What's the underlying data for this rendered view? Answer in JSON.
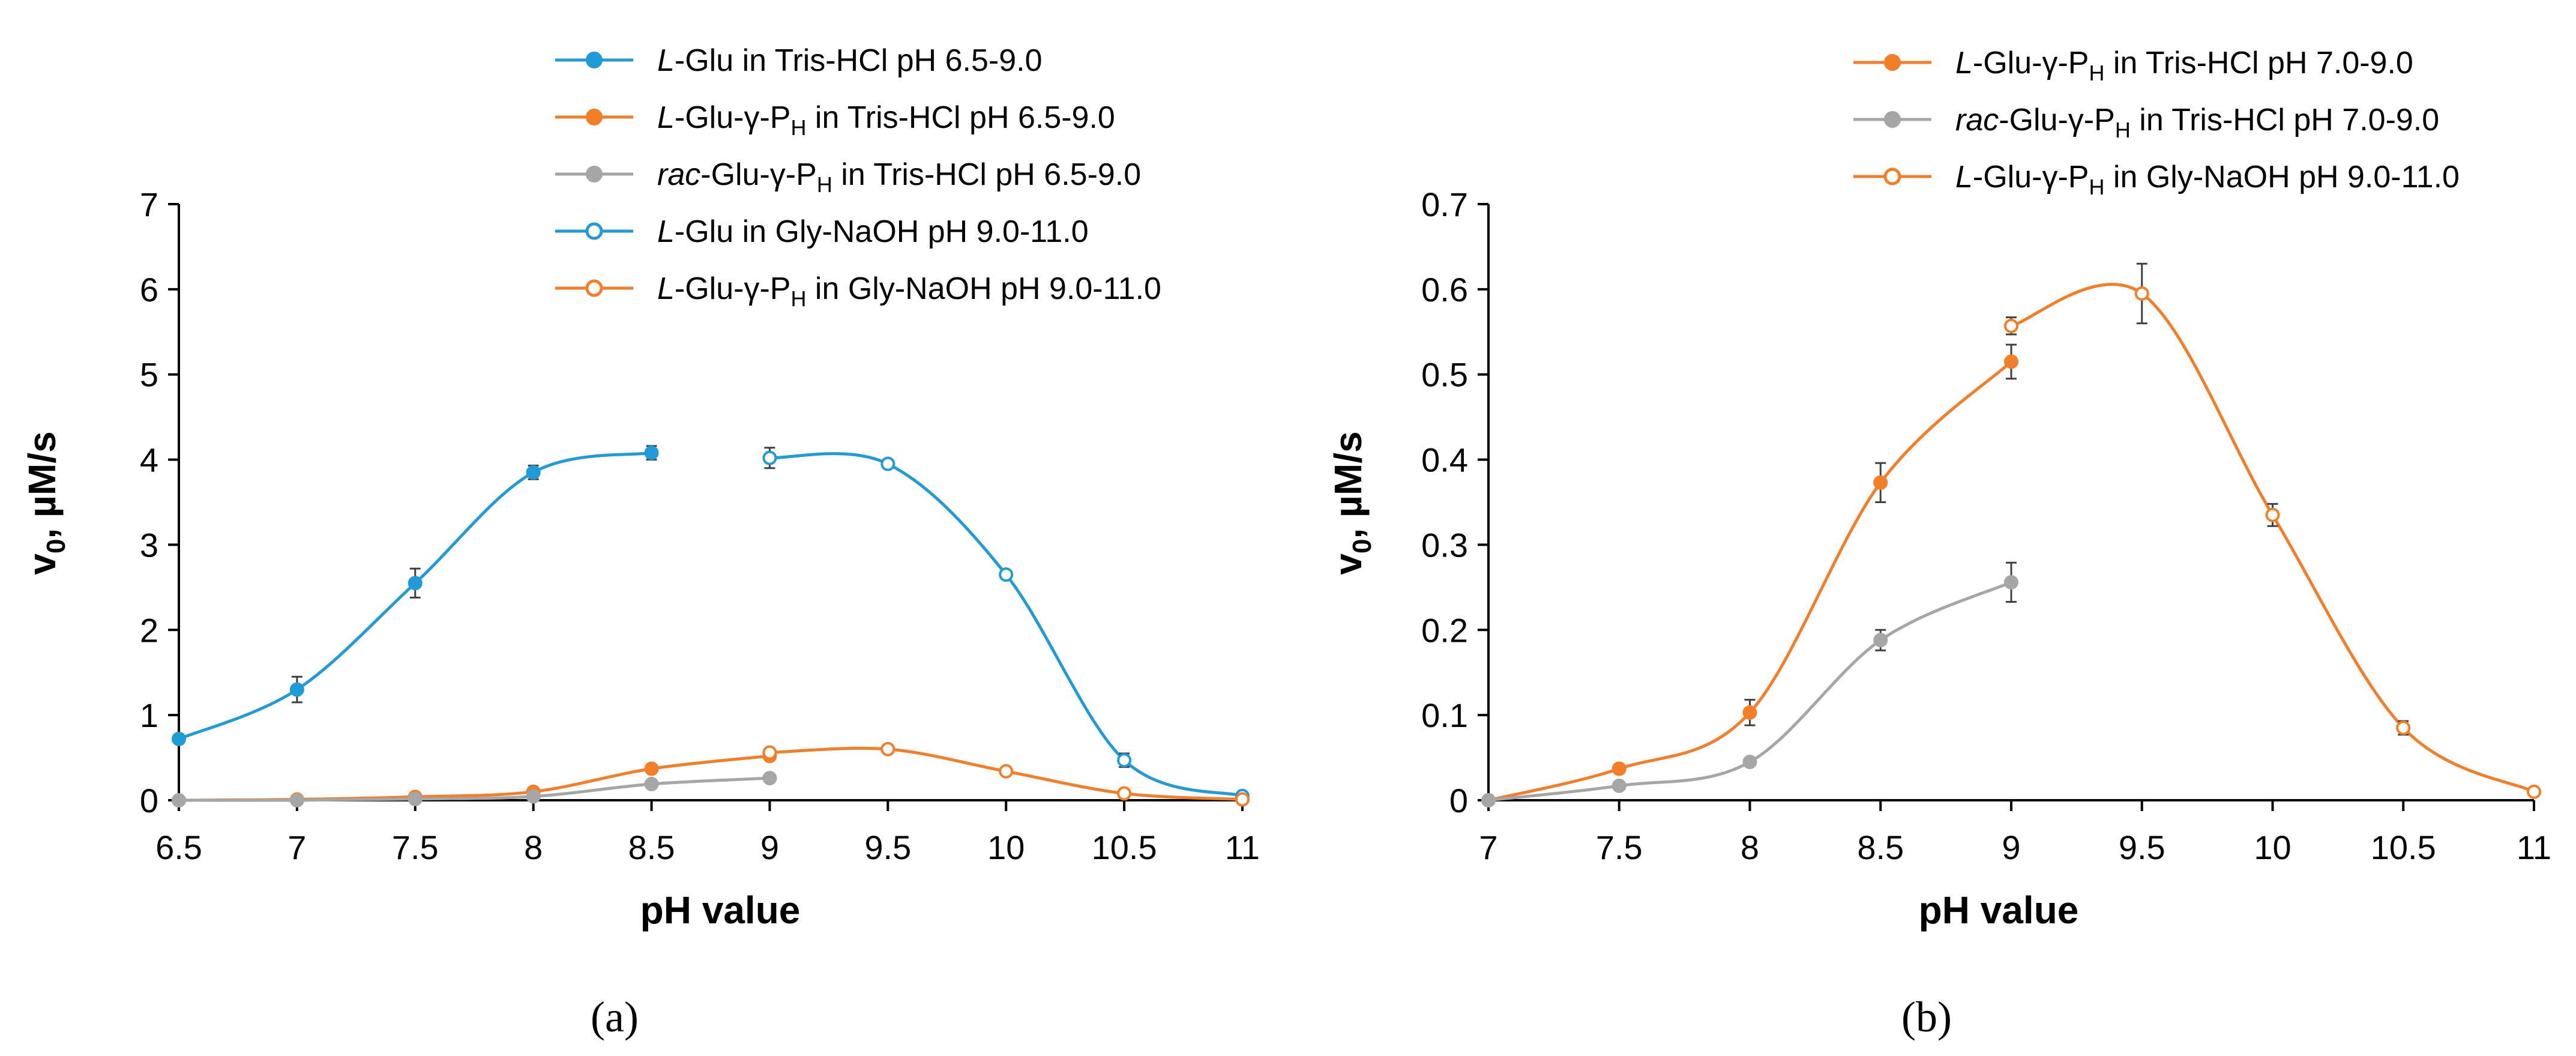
{
  "colors": {
    "blue": "#1f9bd7",
    "orange": "#f47e28",
    "gray": "#a6a6a6",
    "axis": "#000000",
    "errorbar": "#404040"
  },
  "chart_data": [
    {
      "type": "line",
      "panel_label": "(a)",
      "xlabel": "pH value",
      "ylabel": "v0, µM/s",
      "ylabel_main": "v",
      "ylabel_sub": "0",
      "ylabel_rest": ", µM/s",
      "xlim": [
        6.5,
        11
      ],
      "ylim": [
        0,
        7
      ],
      "xticks": [
        6.5,
        7,
        7.5,
        8,
        8.5,
        9,
        9.5,
        10,
        10.5,
        11
      ],
      "xtick_labels": [
        "6.5",
        "7",
        "7.5",
        "8",
        "8.5",
        "9",
        "9.5",
        "10",
        "10.5",
        "11"
      ],
      "yticks": [
        0,
        1,
        2,
        3,
        4,
        5,
        6,
        7
      ],
      "ytick_labels": [
        "0",
        "1",
        "2",
        "3",
        "4",
        "5",
        "6",
        "7"
      ],
      "grid": false,
      "legend_position": "top",
      "series": [
        {
          "name": "L-Glu in Tris-HCl pH 6.5-9.0",
          "legend": {
            "italic": "L",
            "pre": "-Glu in Tris-HCl pH 6.5-9.0"
          },
          "color": "blue",
          "marker": "filled",
          "x": [
            6.5,
            7,
            7.5,
            8,
            8.5
          ],
          "y": [
            0.72,
            1.3,
            2.55,
            3.85,
            4.08
          ],
          "err": [
            0.05,
            0.15,
            0.17,
            0.08,
            0.08
          ]
        },
        {
          "name": "L-Glu-γ-PH in Tris-HCl pH 6.5-9.0",
          "legend": {
            "italic": "L",
            "pre": "-Glu-γ-P",
            "sub": "H",
            "post": " in Tris-HCl pH 6.5-9.0"
          },
          "color": "orange",
          "marker": "filled",
          "x": [
            6.5,
            7,
            7.5,
            8,
            8.5,
            9
          ],
          "y": [
            0.0,
            0.01,
            0.04,
            0.1,
            0.37,
            0.52
          ],
          "err": [
            0,
            0,
            0,
            0.015,
            0.03,
            0.02
          ]
        },
        {
          "name": "rac-Glu-γ-PH in Tris-HCl pH 6.5-9.0",
          "legend": {
            "italic": "rac",
            "pre": "-Glu-γ-P",
            "sub": "H",
            "post": " in Tris-HCl pH 6.5-9.0"
          },
          "color": "gray",
          "marker": "filled",
          "x": [
            6.5,
            7,
            7.5,
            8,
            8.5,
            9
          ],
          "y": [
            0.0,
            0.0,
            0.015,
            0.045,
            0.19,
            0.26
          ],
          "err": [
            0,
            0,
            0,
            0,
            0.01,
            0.02
          ]
        },
        {
          "name": "L-Glu in Gly-NaOH pH 9.0-11.0",
          "legend": {
            "italic": "L",
            "pre": "-Glu in Gly-NaOH pH 9.0-11.0"
          },
          "color": "blue",
          "marker": "open",
          "x": [
            9,
            9.5,
            10,
            10.5,
            11
          ],
          "y": [
            4.02,
            3.95,
            2.65,
            0.47,
            0.05
          ],
          "err": [
            0.12,
            0.03,
            0.03,
            0.08,
            0.02
          ]
        },
        {
          "name": "L-Glu-γ-PH in Gly-NaOH pH 9.0-11.0",
          "legend": {
            "italic": "L",
            "pre": "-Glu-γ-P",
            "sub": "H",
            "post": " in Gly-NaOH pH 9.0-11.0"
          },
          "color": "orange",
          "marker": "open",
          "x": [
            9,
            9.5,
            10,
            10.5,
            11
          ],
          "y": [
            0.56,
            0.6,
            0.34,
            0.08,
            0.01
          ],
          "err": [
            0.02,
            0.03,
            0.02,
            0.01,
            0
          ]
        }
      ]
    },
    {
      "type": "line",
      "panel_label": "(b)",
      "xlabel": "pH value",
      "ylabel": "v0, µM/s",
      "ylabel_main": "v",
      "ylabel_sub": "0",
      "ylabel_rest": ", µM/s",
      "xlim": [
        7,
        11
      ],
      "ylim": [
        0,
        0.7
      ],
      "xticks": [
        7,
        7.5,
        8,
        8.5,
        9,
        9.5,
        10,
        10.5,
        11
      ],
      "xtick_labels": [
        "7",
        "7.5",
        "8",
        "8.5",
        "9",
        "9.5",
        "10",
        "10.5",
        "11"
      ],
      "yticks": [
        0,
        0.1,
        0.2,
        0.3,
        0.4,
        0.5,
        0.6,
        0.7
      ],
      "ytick_labels": [
        "0",
        "0.1",
        "0.2",
        "0.3",
        "0.4",
        "0.5",
        "0.6",
        "0.7"
      ],
      "grid": false,
      "legend_position": "top-right",
      "series": [
        {
          "name": "L-Glu-γ-PH in Tris-HCl pH 7.0-9.0",
          "legend": {
            "italic": "L",
            "pre": "-Glu-γ-P",
            "sub": "H",
            "post": " in Tris-HCl pH 7.0-9.0"
          },
          "color": "orange",
          "marker": "filled",
          "x": [
            7,
            7.5,
            8,
            8.5,
            9
          ],
          "y": [
            0.0,
            0.037,
            0.103,
            0.373,
            0.515
          ],
          "err": [
            0,
            0.005,
            0.015,
            0.023,
            0.02
          ]
        },
        {
          "name": "rac-Glu-γ-PH in Tris-HCl pH 7.0-9.0",
          "legend": {
            "italic": "rac",
            "pre": "-Glu-γ-P",
            "sub": "H",
            "post": " in Tris-HCl pH 7.0-9.0"
          },
          "color": "gray",
          "marker": "filled",
          "x": [
            7,
            7.5,
            8,
            8.5,
            9
          ],
          "y": [
            0.0,
            0.017,
            0.045,
            0.188,
            0.256
          ],
          "err": [
            0,
            0,
            0,
            0.012,
            0.023
          ]
        },
        {
          "name": "L-Glu-γ-PH in Gly-NaOH pH 9.0-11.0",
          "legend": {
            "italic": "L",
            "pre": "-Glu-γ-P",
            "sub": "H",
            "post": " in Gly-NaOH pH 9.0-11.0"
          },
          "color": "orange",
          "marker": "open",
          "x": [
            9,
            9.5,
            10,
            10.5,
            11
          ],
          "y": [
            0.557,
            0.595,
            0.335,
            0.085,
            0.01
          ],
          "err": [
            0.01,
            0.035,
            0.013,
            0.008,
            0
          ]
        }
      ]
    }
  ]
}
